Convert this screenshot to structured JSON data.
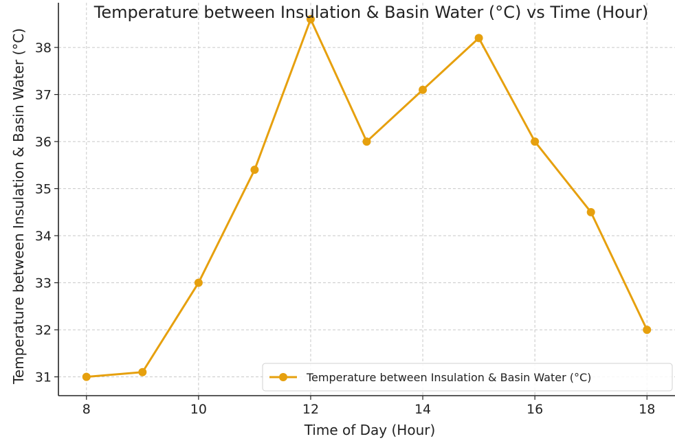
{
  "chart_data": {
    "type": "line",
    "title": "Temperature between Insulation & Basin Water (°C) vs Time (Hour)",
    "xlabel": "Time of Day (Hour)",
    "ylabel": "Temperature between Insulation & Basin Water (°C)",
    "x": [
      8,
      9,
      10,
      11,
      12,
      13,
      14,
      15,
      16,
      17,
      18
    ],
    "series": [
      {
        "name": "Temperature between Insulation & Basin Water (°C)",
        "values": [
          31.0,
          31.1,
          33.0,
          35.4,
          38.6,
          36.0,
          37.1,
          38.2,
          36.0,
          34.5,
          32.0
        ],
        "color": "#E6A00E",
        "marker": "circle"
      }
    ],
    "xticks": [
      8,
      10,
      12,
      14,
      16,
      18
    ],
    "yticks": [
      31,
      32,
      33,
      34,
      35,
      36,
      37,
      38
    ],
    "xlim": [
      7.5,
      18.5
    ],
    "ylim": [
      30.6,
      38.95
    ],
    "grid": true,
    "legend": "lower-right"
  }
}
